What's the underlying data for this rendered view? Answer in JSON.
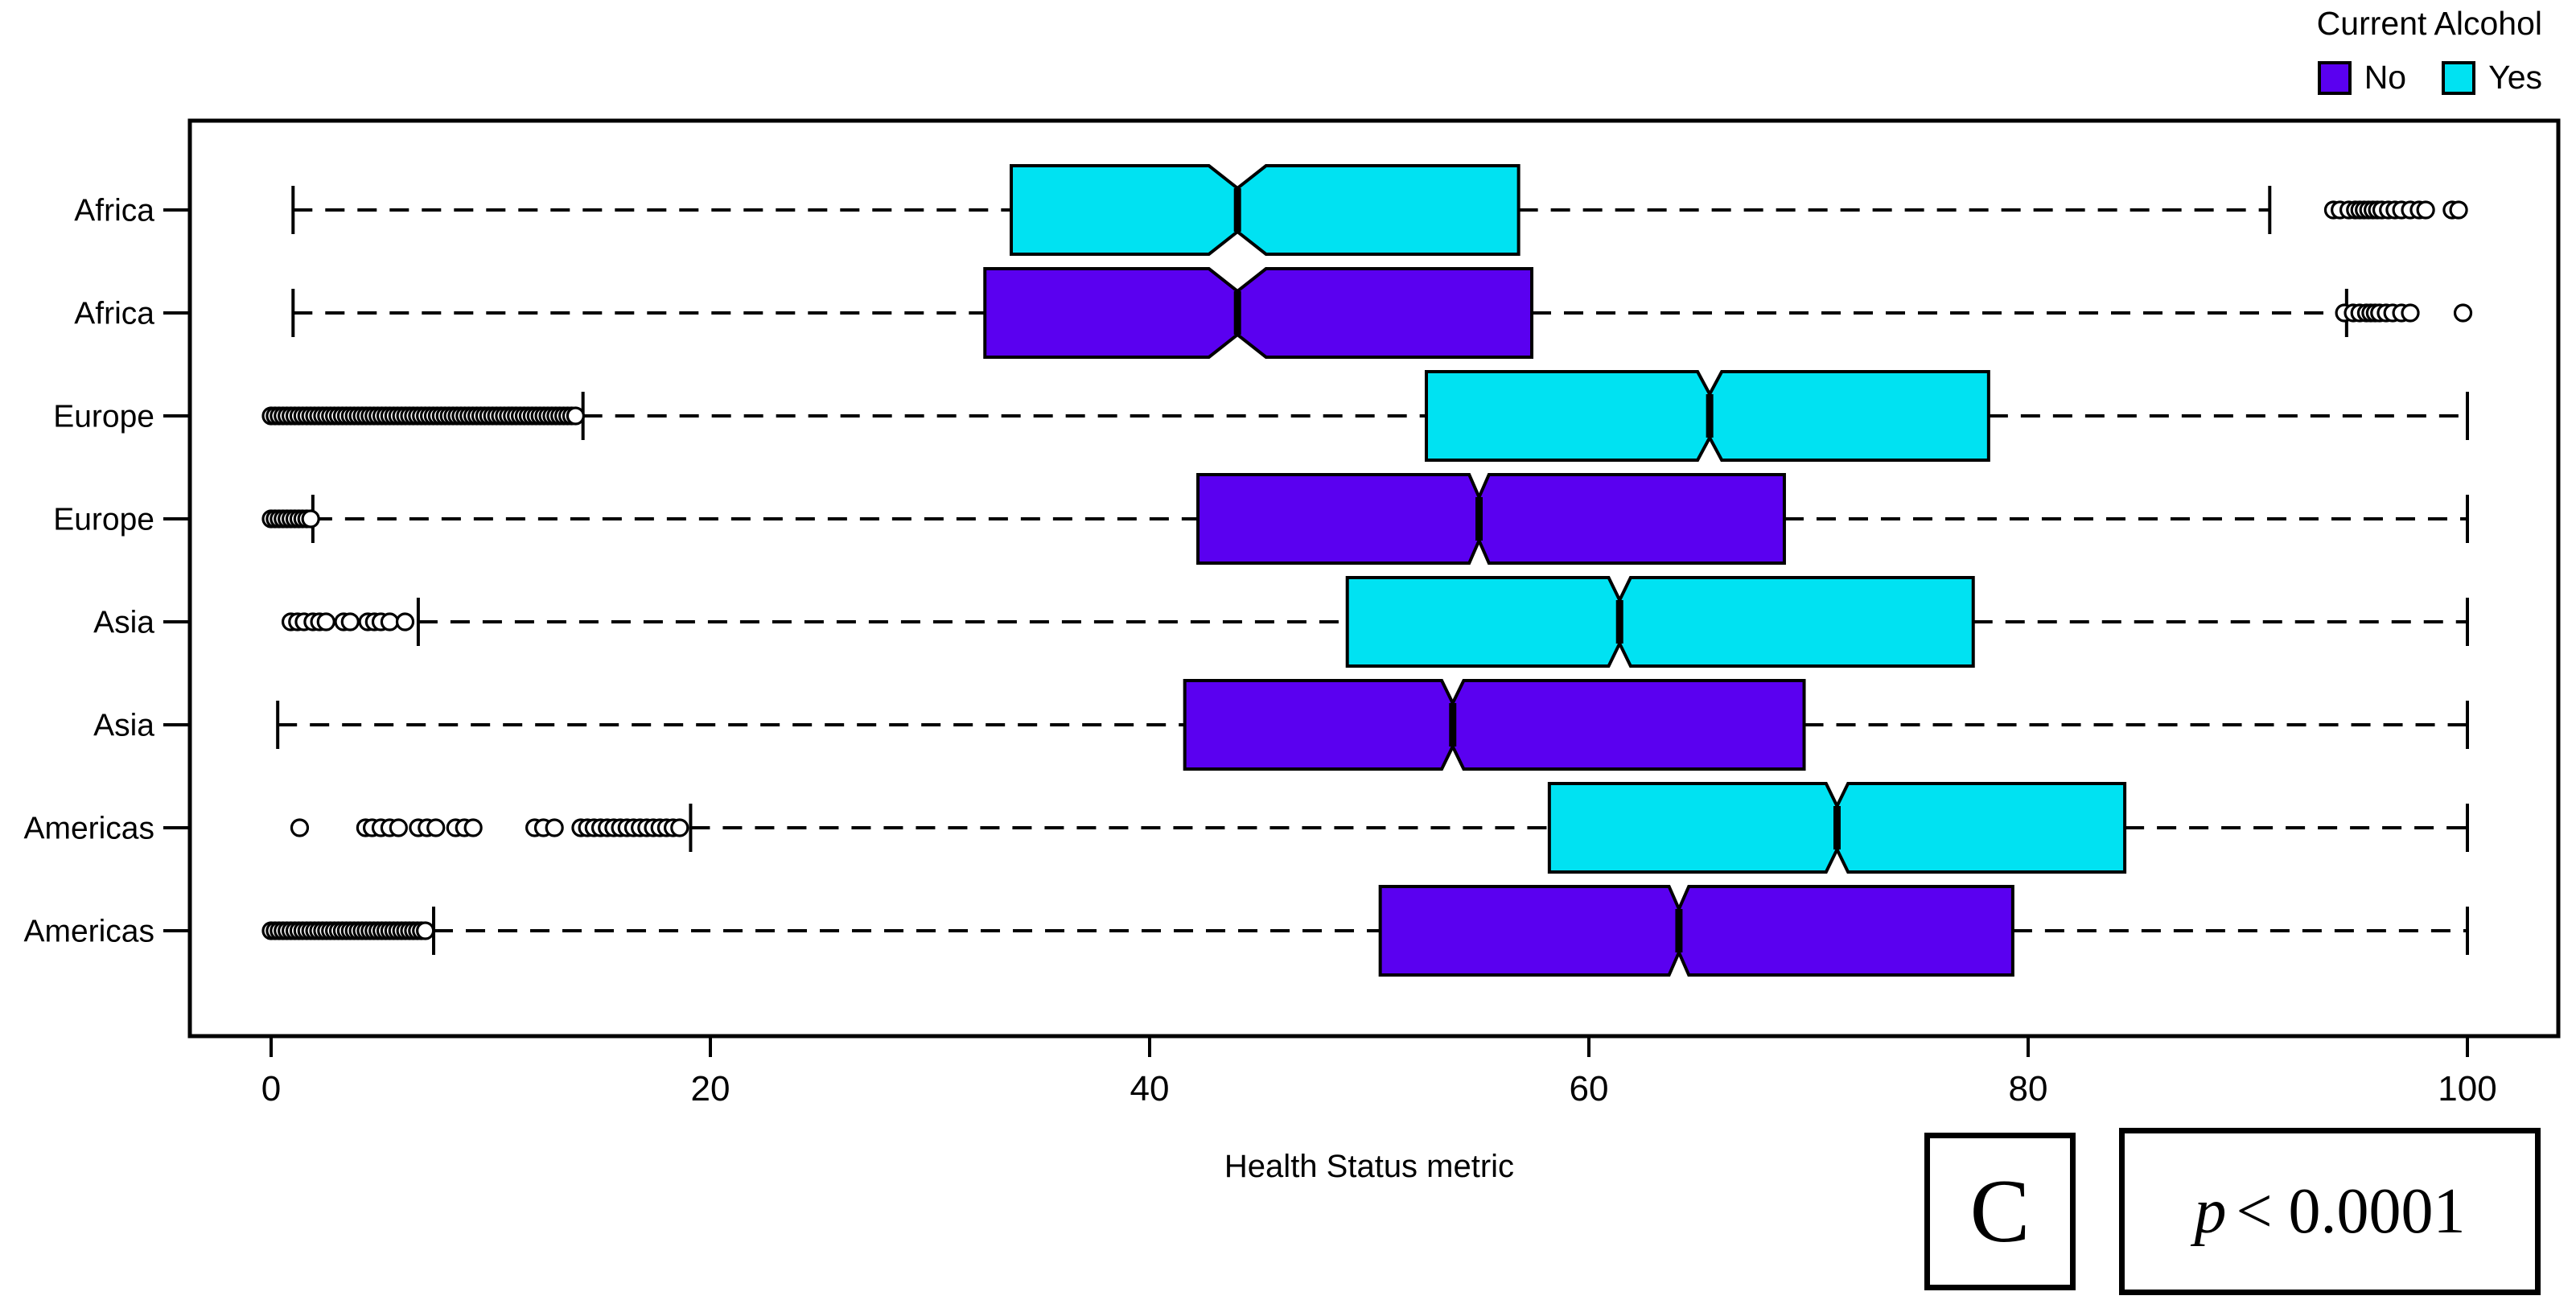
{
  "legend": {
    "title": "Current Alcohol",
    "items": [
      {
        "label": "No",
        "color": "#5A00F0"
      },
      {
        "label": "Yes",
        "color": "#00E2F2"
      }
    ]
  },
  "x_axis": {
    "title": "Health Status metric",
    "ticks": [
      0,
      20,
      40,
      60,
      80,
      100
    ],
    "range": [
      0,
      100
    ]
  },
  "annotations": {
    "panel_label": "C",
    "p_symbol": "p",
    "p_rest": "< 0.0001"
  },
  "chart_data": {
    "type": "boxplot",
    "orientation": "horizontal",
    "notched": true,
    "title": "",
    "xlabel": "Health Status metric",
    "xlim": [
      0,
      100
    ],
    "x_ticks": [
      0,
      20,
      40,
      60,
      80,
      100
    ],
    "series_key": "Current Alcohol",
    "grid": false,
    "rows": [
      {
        "continent": "Africa",
        "alcohol": "Yes",
        "whisker_low": 1.0,
        "q1": 33.7,
        "median": 44.0,
        "q3": 56.8,
        "whisker_high": 91.0,
        "notch_halfwidth": 1.3,
        "outliers": [
          93.9,
          94.2,
          94.6,
          94.9,
          95.1,
          95.3,
          95.5,
          95.7,
          95.9,
          96.1,
          96.4,
          96.7,
          97.0,
          97.4,
          97.8,
          98.1,
          99.3,
          99.6
        ],
        "outlier_bands": []
      },
      {
        "continent": "Africa",
        "alcohol": "No",
        "whisker_low": 1.0,
        "q1": 32.5,
        "median": 44.0,
        "q3": 57.4,
        "whisker_high": 94.5,
        "notch_halfwidth": 1.3,
        "outliers": [
          94.4,
          94.8,
          95.1,
          95.4,
          95.6,
          95.8,
          96.0,
          96.3,
          96.6,
          97.0,
          97.4,
          99.8
        ],
        "outlier_bands": []
      },
      {
        "continent": "Europe",
        "alcohol": "Yes",
        "whisker_low": 14.2,
        "q1": 52.6,
        "median": 65.5,
        "q3": 78.2,
        "whisker_high": 100.0,
        "notch_halfwidth": 0.55,
        "outliers": [],
        "outlier_bands": [
          [
            0.0,
            14.0
          ]
        ]
      },
      {
        "continent": "Europe",
        "alcohol": "No",
        "whisker_low": 1.9,
        "q1": 42.2,
        "median": 55.0,
        "q3": 68.9,
        "whisker_high": 100.0,
        "notch_halfwidth": 0.45,
        "outliers": [],
        "outlier_bands": [
          [
            0.0,
            1.8
          ]
        ]
      },
      {
        "continent": "Asia",
        "alcohol": "Yes",
        "whisker_low": 6.7,
        "q1": 49.0,
        "median": 61.4,
        "q3": 77.5,
        "whisker_high": 100.0,
        "notch_halfwidth": 0.5,
        "outliers": [
          0.9,
          1.2,
          1.5,
          1.9,
          2.2,
          2.5,
          3.3,
          3.6,
          4.4,
          4.7,
          5.0,
          5.4,
          6.1
        ],
        "outlier_bands": []
      },
      {
        "continent": "Asia",
        "alcohol": "No",
        "whisker_low": 0.3,
        "q1": 41.6,
        "median": 53.8,
        "q3": 69.8,
        "whisker_high": 100.0,
        "notch_halfwidth": 0.5,
        "outliers": [],
        "outlier_bands": []
      },
      {
        "continent": "Americas",
        "alcohol": "Yes",
        "whisker_low": 19.1,
        "q1": 58.2,
        "median": 71.3,
        "q3": 84.4,
        "whisker_high": 100.0,
        "notch_halfwidth": 0.5,
        "outliers": [
          1.3,
          4.3,
          4.6,
          5.0,
          5.4,
          5.8,
          6.7,
          7.1,
          7.5,
          8.4,
          8.8,
          9.2,
          12.0,
          12.4,
          12.9,
          14.1,
          14.4,
          14.7,
          15.0,
          15.3,
          15.6,
          15.9,
          16.2,
          16.5,
          16.8,
          17.1,
          17.4,
          17.7,
          18.0,
          18.3,
          18.6
        ],
        "outlier_bands": []
      },
      {
        "continent": "Americas",
        "alcohol": "No",
        "whisker_low": 7.4,
        "q1": 50.5,
        "median": 64.1,
        "q3": 79.3,
        "whisker_high": 100.0,
        "notch_halfwidth": 0.45,
        "outliers": [],
        "outlier_bands": [
          [
            0.0,
            7.1
          ]
        ]
      }
    ]
  }
}
